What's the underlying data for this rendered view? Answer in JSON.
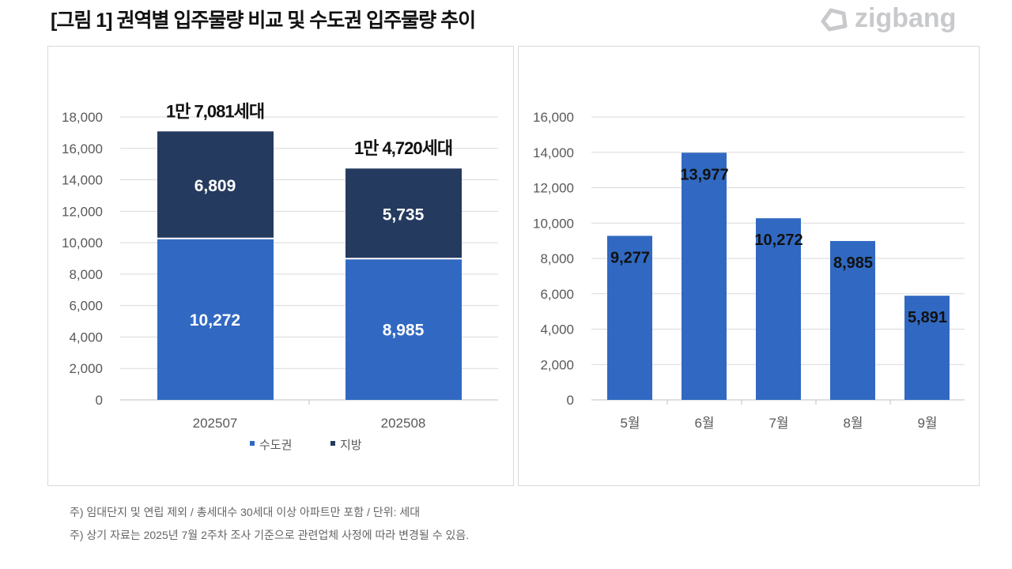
{
  "title": "[그림 1] 권역별 입주물량 비교 및 수도권 입주물량 추이",
  "logo": {
    "text": "zigbang",
    "icon": "zigbang-logo-icon"
  },
  "notes": [
    "주) 임대단지 및 연립 제외 / 총세대수 30세대 이상 아파트만 포함 / 단위: 세대",
    "주) 상기 자료는 2025년 7월 2주차 조사 기준으로 관련업체 사정에 따라 변경될 수 있음."
  ],
  "chart_data": [
    {
      "type": "bar",
      "stacked": true,
      "categories": [
        "202507",
        "202508"
      ],
      "series": [
        {
          "name": "수도권",
          "values": [
            10272,
            8985
          ],
          "color": "#3169c2"
        },
        {
          "name": "지방",
          "values": [
            6809,
            5735
          ],
          "color": "#253a5f"
        }
      ],
      "value_labels": [
        [
          "10,272",
          "8,985"
        ],
        [
          "6,809",
          "5,735"
        ]
      ],
      "total_labels": [
        "1만 7,081세대",
        "1만 4,720세대"
      ],
      "ylim": [
        0,
        18000
      ],
      "yticks": [
        "0",
        "2,000",
        "4,000",
        "6,000",
        "8,000",
        "10,000",
        "12,000",
        "14,000",
        "16,000",
        "18,000"
      ],
      "grid": true,
      "legend": "bottom"
    },
    {
      "type": "bar",
      "categories": [
        "5월",
        "6월",
        "7월",
        "8월",
        "9월"
      ],
      "values": [
        9277,
        13977,
        10272,
        8985,
        5891
      ],
      "value_labels": [
        "9,277",
        "13,977",
        "10,272",
        "8,985",
        "5,891"
      ],
      "color": "#3169c2",
      "ylim": [
        0,
        16000
      ],
      "yticks": [
        "0",
        "2,000",
        "4,000",
        "6,000",
        "8,000",
        "10,000",
        "12,000",
        "14,000",
        "16,000"
      ],
      "grid": true
    }
  ]
}
